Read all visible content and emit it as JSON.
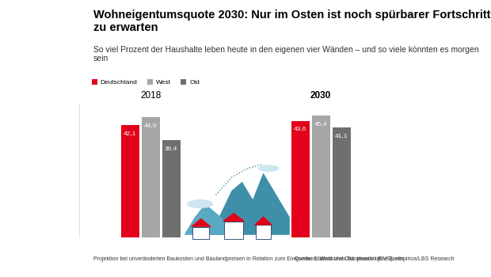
{
  "chart_data": {
    "type": "bar",
    "title": "Wohneigentumsquote 2030: Nur im Osten ist noch spürbarer Fortschritt zu erwarten",
    "subtitle": "So viel Prozent der Haushalte leben heute in den eigenen vier Wänden – und so viele könnten es morgen sein",
    "categories": [
      "2018",
      "2030"
    ],
    "series": [
      {
        "name": "Deutschland",
        "color": "#e2001a",
        "values": [
          42.1,
          43.6
        ],
        "value_labels": [
          "42,1",
          "43,6"
        ]
      },
      {
        "name": "West",
        "color": "#a6a6a6",
        "values": [
          44.9,
          45.4
        ],
        "value_labels": [
          "44,9",
          "45,4"
        ]
      },
      {
        "name": "Ost",
        "color": "#6f6f6f",
        "values": [
          36.4,
          41.1
        ],
        "value_labels": [
          "36,4",
          "41,1"
        ]
      }
    ],
    "ylim": [
      0,
      50
    ],
    "tick_labels": "x",
    "data_labels": true,
    "legend": "upper left",
    "note": "Projektion bei unveränderten Baukosten und Baulandpreisen in Relation zum Einkommen; West und Ost: jeweils ohne Berlin",
    "source": "Quelle: Statistisches Bundesamt (EVS), empirica/LBS Research"
  }
}
